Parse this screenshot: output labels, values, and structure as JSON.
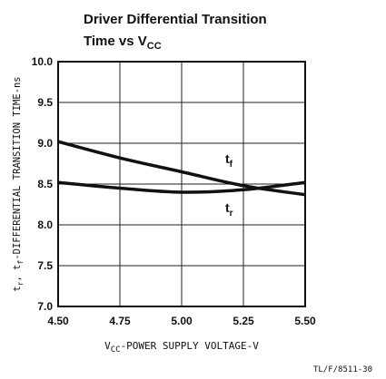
{
  "chart_data": {
    "type": "line",
    "title": [
      "Driver Differential Transition",
      "Time vs V"
    ],
    "title_subscript": "CC",
    "xlabel": [
      "V",
      "CC",
      "-POWER SUPPLY VOLTAGE-V"
    ],
    "ylabel": [
      "t",
      "r",
      ", t",
      "f",
      "-DIFFERENTIAL TRANSITION TIME-ns"
    ],
    "footnote": "TL/F/8511-30",
    "x": [
      4.5,
      4.75,
      5.0,
      5.25,
      5.5
    ],
    "series": [
      {
        "name": [
          "t",
          "f"
        ],
        "color": "#111111",
        "values": [
          9.02,
          8.82,
          8.65,
          8.48,
          8.37
        ]
      },
      {
        "name": [
          "t",
          "r"
        ],
        "color": "#111111",
        "values": [
          8.52,
          8.45,
          8.4,
          8.43,
          8.52
        ]
      }
    ],
    "xlim": [
      4.5,
      5.5
    ],
    "xticks": [
      {
        "value": 4.5,
        "label": "4.50"
      },
      {
        "value": 4.75,
        "label": "4.75"
      },
      {
        "value": 5.0,
        "label": "5.00"
      },
      {
        "value": 5.25,
        "label": "5.25"
      },
      {
        "value": 5.5,
        "label": "5.50"
      }
    ],
    "ylim": [
      7,
      10
    ],
    "yticks": [
      {
        "value": 7,
        "label": "7.0"
      },
      {
        "value": 7.5,
        "label": "7.5"
      },
      {
        "value": 8,
        "label": "8.0"
      },
      {
        "value": 8.5,
        "label": "8.5"
      },
      {
        "value": 9,
        "label": "9.0"
      },
      {
        "value": 9.5,
        "label": "9.5"
      },
      {
        "value": 10,
        "label": "10.0"
      }
    ],
    "grid": true
  }
}
